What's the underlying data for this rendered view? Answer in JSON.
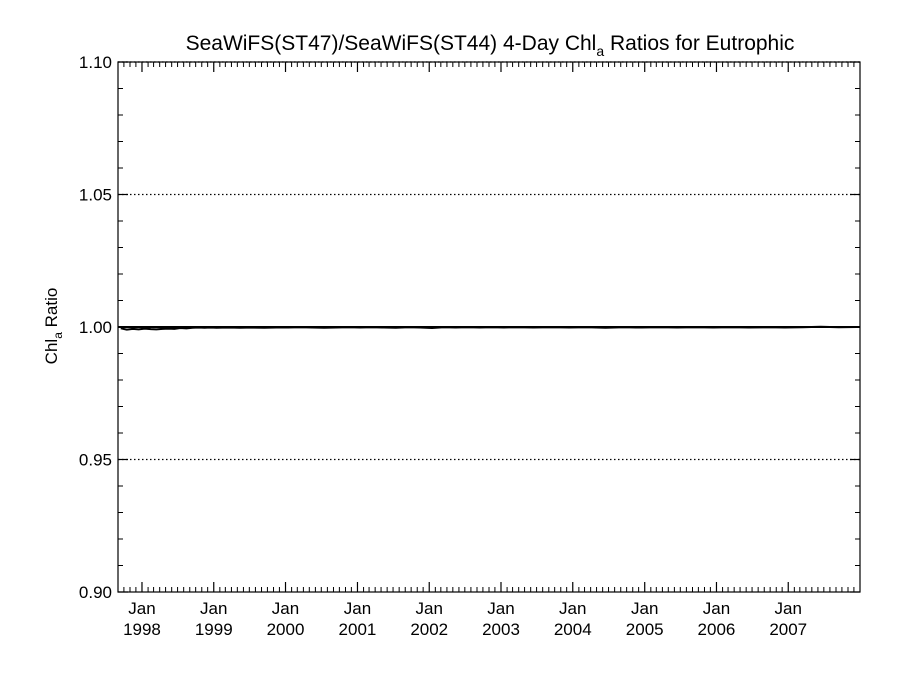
{
  "chart_data": {
    "type": "line",
    "title": {
      "prefix": "SeaWiFS(ST47)/SeaWiFS(ST44) 4-Day Chl",
      "subscript": "a",
      "suffix": " Ratios for Eutrophic"
    },
    "ylabel": {
      "prefix": "Chl",
      "subscript": "a",
      "suffix": " Ratio"
    },
    "xlabel": "",
    "xlim": [
      "1997-09-01",
      "2008-01-01"
    ],
    "ylim": [
      0.9,
      1.1
    ],
    "y_ticks": [
      0.9,
      0.95,
      1.0,
      1.05,
      1.1
    ],
    "y_tick_labels": [
      "0.90",
      "0.95",
      "1.00",
      "1.05",
      "1.10"
    ],
    "y_minor_step": 0.01,
    "dotted_gridlines": [
      0.95,
      1.05,
      1.1
    ],
    "reference_line": 1.0,
    "x_ticks": [
      {
        "date": "1998-01-01",
        "label_top": "Jan",
        "label_bottom": "1998"
      },
      {
        "date": "1999-01-01",
        "label_top": "Jan",
        "label_bottom": "1999"
      },
      {
        "date": "2000-01-01",
        "label_top": "Jan",
        "label_bottom": "2000"
      },
      {
        "date": "2001-01-01",
        "label_top": "Jan",
        "label_bottom": "2001"
      },
      {
        "date": "2002-01-01",
        "label_top": "Jan",
        "label_bottom": "2002"
      },
      {
        "date": "2003-01-01",
        "label_top": "Jan",
        "label_bottom": "2003"
      },
      {
        "date": "2004-01-01",
        "label_top": "Jan",
        "label_bottom": "2004"
      },
      {
        "date": "2005-01-01",
        "label_top": "Jan",
        "label_bottom": "2005"
      },
      {
        "date": "2006-01-01",
        "label_top": "Jan",
        "label_bottom": "2006"
      },
      {
        "date": "2007-01-01",
        "label_top": "Jan",
        "label_bottom": "2007"
      }
    ],
    "grid": false,
    "series": [
      {
        "color": "#000000",
        "points": [
          [
            "1997-09-15",
            0.9995
          ],
          [
            "1997-10-15",
            0.999
          ],
          [
            "1997-11-15",
            0.9993
          ],
          [
            "1997-12-15",
            0.9991
          ],
          [
            "1998-01-15",
            0.9994
          ],
          [
            "1998-02-15",
            0.9992
          ],
          [
            "1998-03-15",
            0.9991
          ],
          [
            "1998-04-15",
            0.9993
          ],
          [
            "1998-05-15",
            0.9994
          ],
          [
            "1998-06-15",
            0.9993
          ],
          [
            "1998-07-15",
            0.9996
          ],
          [
            "1998-08-15",
            0.9995
          ],
          [
            "1998-09-15",
            0.9997
          ],
          [
            "1998-10-15",
            0.9998
          ],
          [
            "1998-11-15",
            0.9997
          ],
          [
            "1998-12-15",
            0.9998
          ],
          [
            "1999-01-15",
            0.9997
          ],
          [
            "1999-03-15",
            0.9998
          ],
          [
            "1999-05-15",
            0.9997
          ],
          [
            "1999-07-15",
            0.9998
          ],
          [
            "1999-09-15",
            0.9997
          ],
          [
            "1999-11-15",
            0.9998
          ],
          [
            "2000-01-15",
            0.9998
          ],
          [
            "2000-03-15",
            0.9999
          ],
          [
            "2000-05-15",
            0.9998
          ],
          [
            "2000-07-15",
            0.9997
          ],
          [
            "2000-09-15",
            0.9998
          ],
          [
            "2000-11-15",
            0.9999
          ],
          [
            "2001-01-15",
            0.9998
          ],
          [
            "2001-03-15",
            0.9999
          ],
          [
            "2001-05-15",
            0.9998
          ],
          [
            "2001-07-15",
            0.9997
          ],
          [
            "2001-09-15",
            0.9999
          ],
          [
            "2001-11-15",
            0.9998
          ],
          [
            "2002-01-15",
            0.9996
          ],
          [
            "2002-03-15",
            0.9999
          ],
          [
            "2002-05-15",
            0.9998
          ],
          [
            "2002-07-15",
            0.9999
          ],
          [
            "2002-09-15",
            0.9998
          ],
          [
            "2002-11-15",
            0.9999
          ],
          [
            "2003-01-15",
            0.9998
          ],
          [
            "2003-03-15",
            0.9999
          ],
          [
            "2003-06-15",
            0.9998
          ],
          [
            "2003-09-15",
            0.9999
          ],
          [
            "2003-12-15",
            0.9998
          ],
          [
            "2004-03-15",
            0.9999
          ],
          [
            "2004-06-15",
            0.9997
          ],
          [
            "2004-09-15",
            0.9999
          ],
          [
            "2004-12-15",
            0.9998
          ],
          [
            "2005-03-15",
            0.9999
          ],
          [
            "2005-06-15",
            0.9998
          ],
          [
            "2005-09-15",
            0.9999
          ],
          [
            "2005-12-15",
            0.9998
          ],
          [
            "2006-03-15",
            0.9999
          ],
          [
            "2006-06-15",
            0.9998
          ],
          [
            "2006-09-15",
            0.9999
          ],
          [
            "2006-12-15",
            0.9998
          ],
          [
            "2007-03-15",
            0.9999
          ],
          [
            "2007-06-15",
            1.0001
          ],
          [
            "2007-09-15",
            0.9999
          ],
          [
            "2007-12-15",
            1.0
          ]
        ]
      }
    ]
  }
}
